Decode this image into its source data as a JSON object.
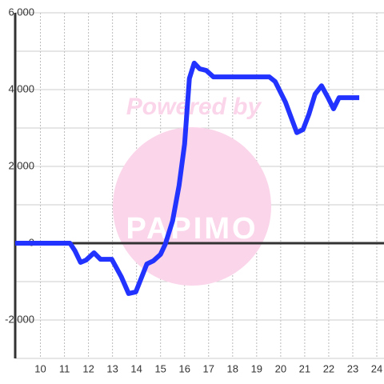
{
  "chart_data": {
    "type": "line",
    "watermark_title": "Powered by",
    "watermark_logo": "PAPIMO",
    "x": [
      8.95,
      11.23,
      11.43,
      11.67,
      11.9,
      12.23,
      12.5,
      12.97,
      13.37,
      13.67,
      13.97,
      14.43,
      14.7,
      15.0,
      15.2,
      15.5,
      15.77,
      16.0,
      16.2,
      16.4,
      16.63,
      16.9,
      17.2,
      19.53,
      19.77,
      20.2,
      20.67,
      20.93,
      21.17,
      21.43,
      21.7,
      21.97,
      22.2,
      22.43,
      23.27
    ],
    "series": [
      {
        "color": "#2233ff",
        "values": [
          0,
          0,
          -190,
          -500,
          -440,
          -250,
          -420,
          -420,
          -880,
          -1310,
          -1270,
          -540,
          -460,
          -290,
          -20,
          580,
          1500,
          2580,
          4290,
          4690,
          4540,
          4500,
          4330,
          4330,
          4210,
          3670,
          2880,
          2960,
          3350,
          3880,
          4100,
          3790,
          3500,
          3790,
          3790
        ]
      }
    ],
    "xlim": [
      8.95,
      24.3
    ],
    "xticks": [
      10,
      11,
      12,
      13,
      14,
      15,
      16,
      17,
      18,
      19,
      20,
      21,
      22,
      23,
      24
    ],
    "ylim": [
      -3000,
      6000
    ],
    "yticks": [
      {
        "value": -2000,
        "label": "-2,000"
      },
      0,
      {
        "value": 2000,
        "label": "2,000"
      },
      {
        "value": 4000,
        "label": "4,000"
      },
      {
        "value": 6000,
        "label": "6,000"
      }
    ],
    "yminorticks": [
      -3000,
      -1000,
      1000,
      3000,
      5000
    ],
    "grid": true
  }
}
